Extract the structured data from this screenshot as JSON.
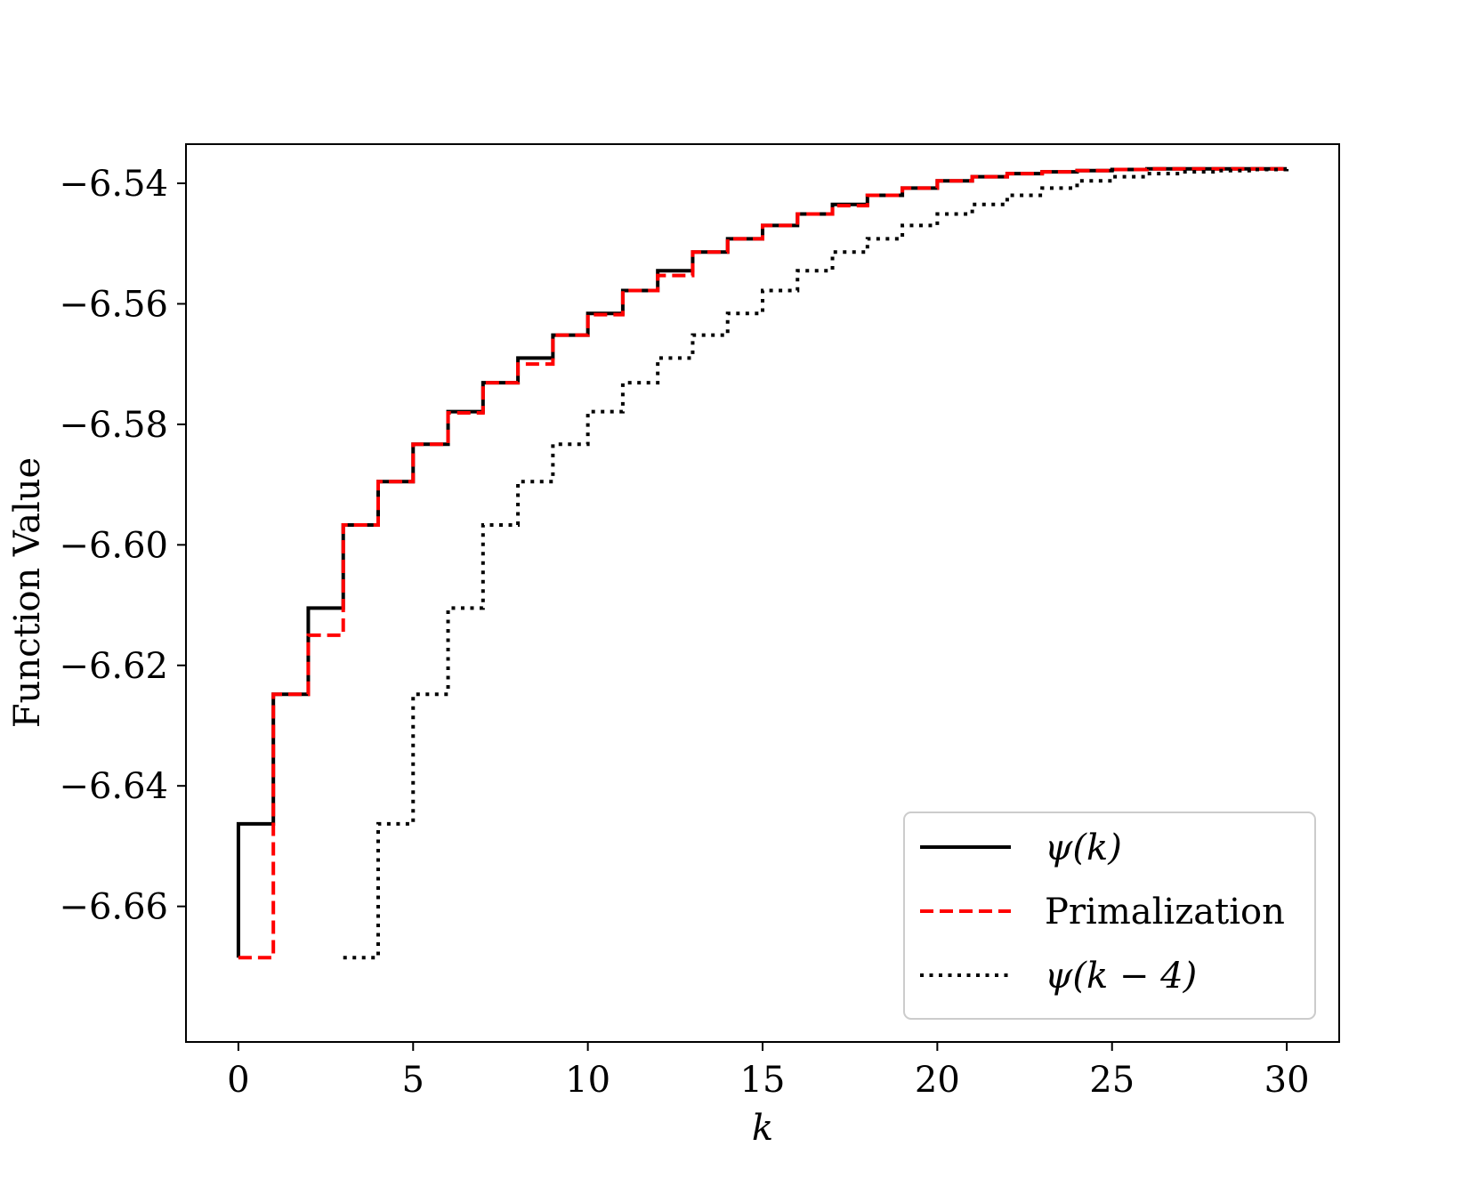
{
  "chart_data": {
    "type": "line",
    "title": "",
    "xlabel": "k",
    "ylabel": "Function Value",
    "xlim": [
      -1.5,
      31.5
    ],
    "ylim": [
      -6.6825,
      -6.5335
    ],
    "xticks": [
      0,
      5,
      10,
      15,
      20,
      25,
      30
    ],
    "xtick_labels": [
      "0",
      "5",
      "10",
      "15",
      "20",
      "25",
      "30"
    ],
    "yticks": [
      -6.54,
      -6.56,
      -6.58,
      -6.6,
      -6.62,
      -6.64,
      -6.66
    ],
    "ytick_labels": [
      "−6.54",
      "−6.56",
      "−6.58",
      "−6.60",
      "−6.62",
      "−6.64",
      "−6.66"
    ],
    "grid": false,
    "legend_position": "lower-right",
    "series": [
      {
        "name": "ψ(k)",
        "style": "solid",
        "color": "#000000",
        "steps": [
          [
            0,
            -6.6685
          ],
          [
            0,
            -6.6463
          ],
          [
            1,
            -6.6463
          ],
          [
            1,
            -6.6248
          ],
          [
            2,
            -6.6248
          ],
          [
            2,
            -6.6105
          ],
          [
            3,
            -6.6105
          ],
          [
            3,
            -6.5967
          ],
          [
            4,
            -6.5967
          ],
          [
            4,
            -6.5895
          ],
          [
            5,
            -6.5895
          ],
          [
            5,
            -6.5833
          ],
          [
            6,
            -6.5833
          ],
          [
            6,
            -6.5779
          ],
          [
            7,
            -6.5779
          ],
          [
            7,
            -6.5731
          ],
          [
            8,
            -6.5731
          ],
          [
            8,
            -6.569
          ],
          [
            9,
            -6.569
          ],
          [
            9,
            -6.5652
          ],
          [
            10,
            -6.5652
          ],
          [
            10,
            -6.5616
          ],
          [
            11,
            -6.5616
          ],
          [
            11,
            -6.5578
          ],
          [
            12,
            -6.5578
          ],
          [
            12,
            -6.5545
          ],
          [
            13,
            -6.5545
          ],
          [
            13,
            -6.5514
          ],
          [
            14,
            -6.5514
          ],
          [
            14,
            -6.5492
          ],
          [
            15,
            -6.5492
          ],
          [
            15,
            -6.547
          ],
          [
            16,
            -6.547
          ],
          [
            16,
            -6.5451
          ],
          [
            17,
            -6.5451
          ],
          [
            17,
            -6.5435
          ],
          [
            18,
            -6.5435
          ],
          [
            18,
            -6.542
          ],
          [
            19,
            -6.542
          ],
          [
            19,
            -6.5408
          ],
          [
            20,
            -6.5408
          ],
          [
            20,
            -6.5396
          ],
          [
            21,
            -6.5396
          ],
          [
            21,
            -6.5389
          ],
          [
            22,
            -6.5389
          ],
          [
            22,
            -6.5384
          ],
          [
            23,
            -6.5384
          ],
          [
            23,
            -6.5381
          ],
          [
            24,
            -6.5381
          ],
          [
            24,
            -6.5379
          ],
          [
            25,
            -6.5379
          ],
          [
            25,
            -6.5377
          ],
          [
            26,
            -6.5377
          ],
          [
            26,
            -6.5376
          ],
          [
            30,
            -6.5376
          ]
        ]
      },
      {
        "name": "Primalization",
        "style": "dashed",
        "color": "#ff0000",
        "steps": [
          [
            0,
            -6.6685
          ],
          [
            1,
            -6.6685
          ],
          [
            1,
            -6.6248
          ],
          [
            2,
            -6.6248
          ],
          [
            2,
            -6.615
          ],
          [
            3,
            -6.615
          ],
          [
            3,
            -6.5967
          ],
          [
            4,
            -6.5967
          ],
          [
            4,
            -6.5895
          ],
          [
            5,
            -6.5895
          ],
          [
            5,
            -6.5833
          ],
          [
            6,
            -6.5833
          ],
          [
            6,
            -6.5781
          ],
          [
            7,
            -6.5781
          ],
          [
            7,
            -6.5731
          ],
          [
            8,
            -6.5731
          ],
          [
            8,
            -6.57
          ],
          [
            9,
            -6.57
          ],
          [
            9,
            -6.5652
          ],
          [
            10,
            -6.5652
          ],
          [
            10,
            -6.5618
          ],
          [
            11,
            -6.5618
          ],
          [
            11,
            -6.5578
          ],
          [
            12,
            -6.5578
          ],
          [
            12,
            -6.5553
          ],
          [
            13,
            -6.5553
          ],
          [
            13,
            -6.5514
          ],
          [
            14,
            -6.5514
          ],
          [
            14,
            -6.5492
          ],
          [
            15,
            -6.5492
          ],
          [
            15,
            -6.547
          ],
          [
            16,
            -6.547
          ],
          [
            16,
            -6.5451
          ],
          [
            17,
            -6.5451
          ],
          [
            17,
            -6.5437
          ],
          [
            18,
            -6.5437
          ],
          [
            18,
            -6.542
          ],
          [
            19,
            -6.542
          ],
          [
            19,
            -6.5408
          ],
          [
            20,
            -6.5408
          ],
          [
            20,
            -6.5396
          ],
          [
            21,
            -6.5396
          ],
          [
            21,
            -6.5389
          ],
          [
            22,
            -6.5389
          ],
          [
            22,
            -6.5384
          ],
          [
            23,
            -6.5384
          ],
          [
            23,
            -6.5381
          ],
          [
            24,
            -6.5381
          ],
          [
            24,
            -6.5379
          ],
          [
            25,
            -6.5379
          ],
          [
            25,
            -6.5377
          ],
          [
            26,
            -6.5377
          ],
          [
            26,
            -6.5376
          ],
          [
            30,
            -6.5376
          ]
        ]
      },
      {
        "name": "ψ(k − 4)",
        "style": "dotted",
        "color": "#000000",
        "steps": [
          [
            3,
            -6.6685
          ],
          [
            4,
            -6.6685
          ],
          [
            4,
            -6.6463
          ],
          [
            5,
            -6.6463
          ],
          [
            5,
            -6.6248
          ],
          [
            6,
            -6.6248
          ],
          [
            6,
            -6.6105
          ],
          [
            7,
            -6.6105
          ],
          [
            7,
            -6.5967
          ],
          [
            8,
            -6.5967
          ],
          [
            8,
            -6.5895
          ],
          [
            9,
            -6.5895
          ],
          [
            9,
            -6.5833
          ],
          [
            10,
            -6.5833
          ],
          [
            10,
            -6.5779
          ],
          [
            11,
            -6.5779
          ],
          [
            11,
            -6.5731
          ],
          [
            12,
            -6.5731
          ],
          [
            12,
            -6.569
          ],
          [
            13,
            -6.569
          ],
          [
            13,
            -6.5652
          ],
          [
            14,
            -6.5652
          ],
          [
            14,
            -6.5616
          ],
          [
            15,
            -6.5616
          ],
          [
            15,
            -6.5578
          ],
          [
            16,
            -6.5578
          ],
          [
            16,
            -6.5545
          ],
          [
            17,
            -6.5545
          ],
          [
            17,
            -6.5514
          ],
          [
            18,
            -6.5514
          ],
          [
            18,
            -6.5492
          ],
          [
            19,
            -6.5492
          ],
          [
            19,
            -6.547
          ],
          [
            20,
            -6.547
          ],
          [
            20,
            -6.5451
          ],
          [
            21,
            -6.5451
          ],
          [
            21,
            -6.5435
          ],
          [
            22,
            -6.5435
          ],
          [
            22,
            -6.542
          ],
          [
            23,
            -6.542
          ],
          [
            23,
            -6.5408
          ],
          [
            24,
            -6.5408
          ],
          [
            24,
            -6.5396
          ],
          [
            25,
            -6.5396
          ],
          [
            25,
            -6.5389
          ],
          [
            26,
            -6.5389
          ],
          [
            26,
            -6.5384
          ],
          [
            27,
            -6.5384
          ],
          [
            27,
            -6.5381
          ],
          [
            28,
            -6.5381
          ],
          [
            28,
            -6.5379
          ],
          [
            29,
            -6.5379
          ],
          [
            29,
            -6.5377
          ],
          [
            30,
            -6.5377
          ],
          [
            30,
            -6.5376
          ]
        ]
      }
    ]
  }
}
